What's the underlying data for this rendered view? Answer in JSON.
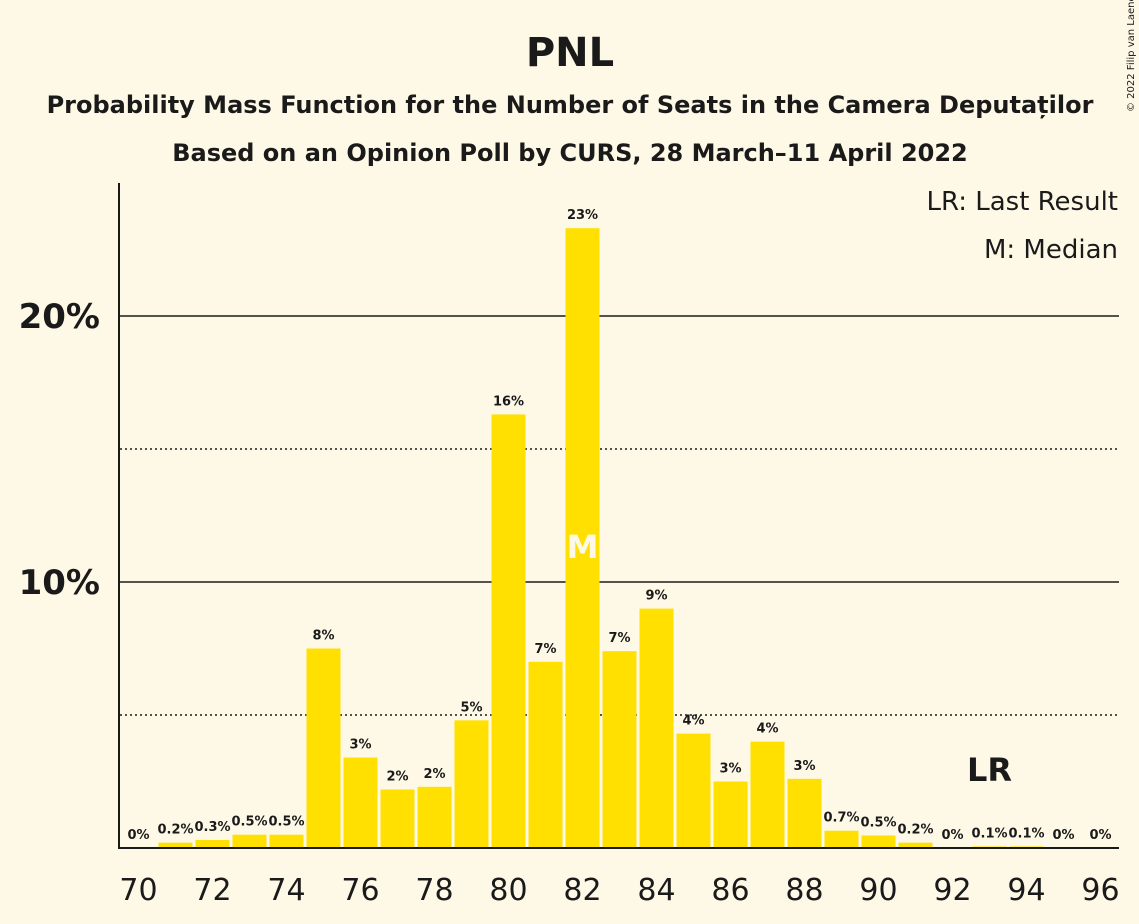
{
  "chart_data": {
    "type": "bar",
    "title": "PNL",
    "subtitle_lines": [
      "Probability Mass Function for the Number of Seats in the Camera Deputaților",
      "Based on an Opinion Poll by CURS, 28 March–11 April 2022"
    ],
    "copyright": "© 2022 Filip van Laenen",
    "legend": [
      "LR: Last Result",
      "M: Median"
    ],
    "x": [
      70,
      71,
      72,
      73,
      74,
      75,
      76,
      77,
      78,
      79,
      80,
      81,
      82,
      83,
      84,
      85,
      86,
      87,
      88,
      89,
      90,
      91,
      92,
      93,
      94,
      95,
      96
    ],
    "values": [
      0,
      0.2,
      0.3,
      0.5,
      0.5,
      7.5,
      3.4,
      2.2,
      2.3,
      4.8,
      16.3,
      7.0,
      23.3,
      7.4,
      9.0,
      4.3,
      2.5,
      4.0,
      2.6,
      0.65,
      0.47,
      0.2,
      0,
      0.06,
      0.06,
      0,
      0
    ],
    "labels": [
      "0%",
      "0.2%",
      "0.3%",
      "0.5%",
      "0.5%",
      "8%",
      "3%",
      "2%",
      "2%",
      "5%",
      "16%",
      "7%",
      "23%",
      "7%",
      "9%",
      "4%",
      "3%",
      "4%",
      "3%",
      "0.7%",
      "0.5%",
      "0.2%",
      "0%",
      "0.1%",
      "0.1%",
      "0%",
      "0%"
    ],
    "xticks": [
      "70",
      "72",
      "74",
      "76",
      "78",
      "80",
      "82",
      "84",
      "86",
      "88",
      "90",
      "92",
      "94",
      "96"
    ],
    "xtick_values": [
      70,
      72,
      74,
      76,
      78,
      80,
      82,
      84,
      86,
      88,
      90,
      92,
      94,
      96
    ],
    "yticks": [
      "10%",
      "20%"
    ],
    "ytick_values": [
      10,
      20
    ],
    "ylim": [
      0,
      25
    ],
    "median_seat": 82,
    "median_marker": "M",
    "last_result_seat": 93,
    "last_result_marker": "LR",
    "bar_color": "#FFE000"
  }
}
